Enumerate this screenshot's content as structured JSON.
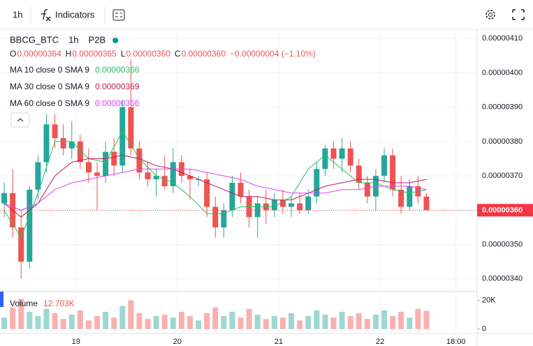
{
  "toolbar": {
    "interval": "1h",
    "indicators": "Indicators"
  },
  "chart_data": {
    "type": "candlestick",
    "symbol": "BBCG_BTC",
    "interval": "1h",
    "exchange": "P2B",
    "ohlc_legend": {
      "keys": [
        "O",
        "H",
        "L",
        "C"
      ],
      "values": [
        "0.00000364",
        "0.00000365",
        "0.00000360",
        "0.00000360"
      ],
      "change": "−0.00000004 (−1.10%)"
    },
    "up_color": "#26a69a",
    "down_color": "#ef5350",
    "grid": true,
    "xlim": [
      -1,
      112
    ],
    "xticks": [
      {
        "value": 17,
        "label": "19"
      },
      {
        "value": 41,
        "label": "20"
      },
      {
        "value": 65,
        "label": "21"
      },
      {
        "value": 89,
        "label": "22"
      },
      {
        "value": 107,
        "label": "18:00"
      }
    ],
    "ylim": [
      3.363e-06,
      4.127e-06
    ],
    "yticks": [
      {
        "value": 3.4e-06,
        "label": "0.00000340"
      },
      {
        "value": 3.5e-06,
        "label": "0.00000350"
      },
      {
        "value": 3.6e-06,
        "label": "0.00000360"
      },
      {
        "value": 3.7e-06,
        "label": "0.00000370"
      },
      {
        "value": 3.8e-06,
        "label": "0.00000380"
      },
      {
        "value": 3.9e-06,
        "label": "0.00000390"
      },
      {
        "value": 4e-06,
        "label": "0.00000400"
      },
      {
        "value": 4.1e-06,
        "label": "0.00000410"
      }
    ],
    "candles": {
      "x": [
        0,
        2,
        4,
        6,
        8,
        10,
        12,
        14,
        16,
        18,
        20,
        22,
        24,
        26,
        28,
        30,
        32,
        34,
        36,
        38,
        40,
        42,
        44,
        46,
        48,
        50,
        52,
        54,
        56,
        58,
        60,
        62,
        64,
        66,
        68,
        70,
        72,
        74,
        76,
        78,
        80,
        82,
        84,
        86,
        88,
        90,
        92,
        94,
        96,
        98,
        100
      ],
      "open": [
        3.62e-06,
        3.65e-06,
        3.55e-06,
        3.45e-06,
        3.66e-06,
        3.74e-06,
        3.85e-06,
        3.81e-06,
        3.78e-06,
        3.8e-06,
        3.74e-06,
        3.71e-06,
        3.7e-06,
        3.77e-06,
        3.73e-06,
        3.9e-06,
        3.78e-06,
        3.71e-06,
        3.69e-06,
        3.7e-06,
        3.67e-06,
        3.74e-06,
        3.7e-06,
        3.69e-06,
        3.69e-06,
        3.61e-06,
        3.55e-06,
        3.6e-06,
        3.68e-06,
        3.64e-06,
        3.58e-06,
        3.62e-06,
        3.6e-06,
        3.63e-06,
        3.61e-06,
        3.62e-06,
        3.6e-06,
        3.64e-06,
        3.72e-06,
        3.78e-06,
        3.75e-06,
        3.78e-06,
        3.73e-06,
        3.68e-06,
        3.64e-06,
        3.7e-06,
        3.76e-06,
        3.66e-06,
        3.61e-06,
        3.67e-06,
        3.64e-06
      ],
      "high": [
        3.68e-06,
        3.72e-06,
        3.6e-06,
        3.67e-06,
        3.76e-06,
        3.88e-06,
        3.88e-06,
        3.85e-06,
        3.86e-06,
        3.82e-06,
        3.78e-06,
        3.74e-06,
        3.8e-06,
        3.81e-06,
        3.92e-06,
        4.04e-06,
        3.8e-06,
        3.74e-06,
        3.72e-06,
        3.76e-06,
        3.78e-06,
        3.76e-06,
        3.72e-06,
        3.7e-06,
        3.71e-06,
        3.64e-06,
        3.62e-06,
        3.7e-06,
        3.71e-06,
        3.66e-06,
        3.64e-06,
        3.66e-06,
        3.65e-06,
        3.66e-06,
        3.64e-06,
        3.65e-06,
        3.66e-06,
        3.74e-06,
        3.79e-06,
        3.8e-06,
        3.81e-06,
        3.8e-06,
        3.75e-06,
        3.7e-06,
        3.72e-06,
        3.78e-06,
        3.78e-06,
        3.7e-06,
        3.69e-06,
        3.7e-06,
        3.65e-06
      ],
      "low": [
        3.58e-06,
        3.52e-06,
        3.4e-06,
        3.43e-06,
        3.63e-06,
        3.71e-06,
        3.78e-06,
        3.76e-06,
        3.75e-06,
        3.72e-06,
        3.68e-06,
        3.6e-06,
        3.68e-06,
        3.7e-06,
        3.71e-06,
        3.76e-06,
        3.69e-06,
        3.67e-06,
        3.64e-06,
        3.66e-06,
        3.65e-06,
        3.68e-06,
        3.63e-06,
        3.67e-06,
        3.58e-06,
        3.52e-06,
        3.52e-06,
        3.58e-06,
        3.62e-06,
        3.55e-06,
        3.52e-06,
        3.56e-06,
        3.58e-06,
        3.59e-06,
        3.58e-06,
        3.59e-06,
        3.59e-06,
        3.62e-06,
        3.7e-06,
        3.72e-06,
        3.71e-06,
        3.71e-06,
        3.66e-06,
        3.62e-06,
        3.6e-06,
        3.68e-06,
        3.64e-06,
        3.59e-06,
        3.6e-06,
        3.62e-06,
        3.6e-06
      ],
      "close": [
        3.65e-06,
        3.55e-06,
        3.45e-06,
        3.66e-06,
        3.74e-06,
        3.85e-06,
        3.81e-06,
        3.78e-06,
        3.8e-06,
        3.74e-06,
        3.71e-06,
        3.7e-06,
        3.77e-06,
        3.73e-06,
        3.9e-06,
        3.78e-06,
        3.71e-06,
        3.69e-06,
        3.7e-06,
        3.67e-06,
        3.74e-06,
        3.7e-06,
        3.69e-06,
        3.69e-06,
        3.61e-06,
        3.55e-06,
        3.6e-06,
        3.68e-06,
        3.64e-06,
        3.58e-06,
        3.62e-06,
        3.6e-06,
        3.63e-06,
        3.61e-06,
        3.62e-06,
        3.6e-06,
        3.64e-06,
        3.72e-06,
        3.78e-06,
        3.75e-06,
        3.78e-06,
        3.73e-06,
        3.68e-06,
        3.64e-06,
        3.7e-06,
        3.76e-06,
        3.66e-06,
        3.61e-06,
        3.67e-06,
        3.64e-06,
        3.6e-06
      ]
    },
    "series": [
      {
        "name": "MA 10 close 0 SMA 9",
        "color": "#22c55e",
        "last_value_label": "0.00000366",
        "x": [
          0,
          4,
          8,
          12,
          16,
          20,
          24,
          28,
          32,
          36,
          40,
          44,
          48,
          52,
          56,
          60,
          64,
          68,
          72,
          76,
          80,
          84,
          88,
          92,
          96,
          100
        ],
        "values": [
          3.6e-06,
          3.52e-06,
          3.65e-06,
          3.8e-06,
          3.8e-06,
          3.75e-06,
          3.74e-06,
          3.83e-06,
          3.75e-06,
          3.7e-06,
          3.68e-06,
          3.64e-06,
          3.59e-06,
          3.59e-06,
          3.61e-06,
          3.61e-06,
          3.61e-06,
          3.64e-06,
          3.72e-06,
          3.76e-06,
          3.72e-06,
          3.68e-06,
          3.68e-06,
          3.66e-06,
          3.65e-06,
          3.66e-06
        ]
      },
      {
        "name": "MA 30 close 0 SMA 9",
        "color": "#c2185b",
        "last_value_label": "0.00000369",
        "x": [
          0,
          4,
          8,
          12,
          16,
          20,
          24,
          28,
          32,
          36,
          40,
          44,
          48,
          52,
          56,
          60,
          64,
          68,
          72,
          76,
          80,
          84,
          88,
          92,
          96,
          100
        ],
        "values": [
          3.62e-06,
          3.58e-06,
          3.62e-06,
          3.7e-06,
          3.74e-06,
          3.75e-06,
          3.75e-06,
          3.76e-06,
          3.75e-06,
          3.73e-06,
          3.72e-06,
          3.7e-06,
          3.68e-06,
          3.66e-06,
          3.64e-06,
          3.64e-06,
          3.63e-06,
          3.63e-06,
          3.65e-06,
          3.67e-06,
          3.68e-06,
          3.69e-06,
          3.69e-06,
          3.68e-06,
          3.68e-06,
          3.69e-06
        ]
      },
      {
        "name": "MA 60 close 0 SMA 9",
        "color": "#e040fb",
        "last_value_label": "0.00000366",
        "x": [
          0,
          4,
          8,
          12,
          16,
          20,
          24,
          28,
          32,
          36,
          40,
          44,
          48,
          52,
          56,
          60,
          64,
          68,
          72,
          76,
          80,
          84,
          88,
          92,
          96,
          100
        ],
        "values": [
          3.62e-06,
          3.6e-06,
          3.62e-06,
          3.66e-06,
          3.68e-06,
          3.69e-06,
          3.7e-06,
          3.71e-06,
          3.72e-06,
          3.72e-06,
          3.72e-06,
          3.72e-06,
          3.71e-06,
          3.7e-06,
          3.69e-06,
          3.67e-06,
          3.66e-06,
          3.65e-06,
          3.65e-06,
          3.65e-06,
          3.66e-06,
          3.66e-06,
          3.67e-06,
          3.67e-06,
          3.67e-06,
          3.66e-06
        ]
      }
    ],
    "last_price": 3.6e-06,
    "last_price_label": "0.00000360",
    "volume": {
      "name": "Volume",
      "value_label": "12.703K",
      "ylim": [
        -3000,
        25000
      ],
      "yticks": [
        {
          "value": 20000,
          "label": "20K"
        },
        0
      ],
      "values": [
        8000,
        15000,
        21000,
        12000,
        9000,
        14000,
        11000,
        7000,
        10000,
        13000,
        6000,
        9000,
        12000,
        8000,
        16000,
        20000,
        11000,
        7000,
        9000,
        10000,
        8000,
        12000,
        9000,
        6000,
        11000,
        15000,
        9000,
        12000,
        8000,
        14000,
        10000,
        7000,
        9000,
        8000,
        11000,
        6000,
        9000,
        13000,
        10000,
        8000,
        12000,
        9000,
        11000,
        7000,
        10000,
        13000,
        9000,
        12000,
        8000,
        14000,
        12703
      ]
    }
  }
}
